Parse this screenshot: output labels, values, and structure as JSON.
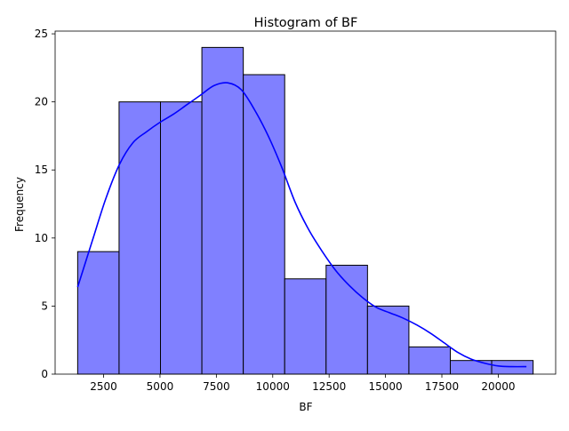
{
  "chart_data": {
    "type": "bar",
    "title": "Histogram of BF",
    "xlabel": "BF",
    "ylabel": "Frequency",
    "bins": [
      {
        "start": 1350,
        "end": 3186,
        "value": 9
      },
      {
        "start": 3186,
        "end": 5022,
        "value": 20
      },
      {
        "start": 5022,
        "end": 6858,
        "value": 20
      },
      {
        "start": 6858,
        "end": 8694,
        "value": 24
      },
      {
        "start": 8694,
        "end": 10530,
        "value": 22
      },
      {
        "start": 10530,
        "end": 12366,
        "value": 7
      },
      {
        "start": 12366,
        "end": 14202,
        "value": 8
      },
      {
        "start": 14202,
        "end": 16038,
        "value": 5
      },
      {
        "start": 16038,
        "end": 17874,
        "value": 2
      },
      {
        "start": 17874,
        "end": 19710,
        "value": 1
      },
      {
        "start": 19710,
        "end": 21546,
        "value": 1
      }
    ],
    "kde": {
      "x": [
        1350,
        2000,
        2600,
        3200,
        3800,
        4400,
        5000,
        5600,
        6200,
        6800,
        7400,
        8000,
        8600,
        9200,
        9800,
        10400,
        11000,
        11600,
        12200,
        12800,
        13400,
        14000,
        14600,
        15200,
        15800,
        16400,
        17000,
        17600,
        18200,
        18800,
        19400,
        20000,
        20600,
        21250
      ],
      "y": [
        6.4,
        9.8,
        12.9,
        15.4,
        17.0,
        17.8,
        18.5,
        19.1,
        19.8,
        20.5,
        21.2,
        21.4,
        20.9,
        19.4,
        17.5,
        15.2,
        12.6,
        10.6,
        9.0,
        7.6,
        6.5,
        5.6,
        4.9,
        4.5,
        4.1,
        3.6,
        3.0,
        2.3,
        1.6,
        1.1,
        0.8,
        0.6,
        0.55,
        0.55
      ]
    },
    "xticks": [
      2500,
      5000,
      7500,
      10000,
      12500,
      15000,
      17500,
      20000
    ],
    "yticks": [
      0,
      5,
      10,
      15,
      20,
      25
    ],
    "xlim": [
      350,
      22546
    ],
    "ylim": [
      0,
      25.2
    ],
    "grid": false,
    "colors": {
      "bar_fill": "#8080ff",
      "bar_edge": "#000000",
      "kde_line": "#0000ff"
    }
  }
}
